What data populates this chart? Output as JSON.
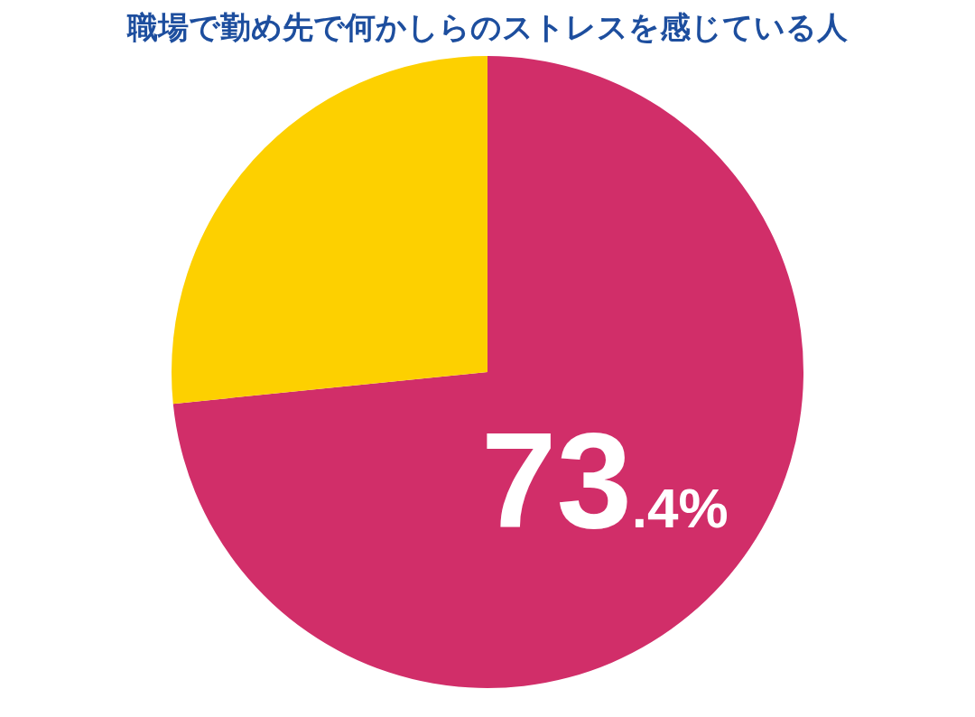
{
  "chart_data": {
    "type": "pie",
    "title": "職場で勤め先で何かしらのストレスを感じている人",
    "categories": [
      null,
      null
    ],
    "values": [
      73.4,
      26.6
    ],
    "colors": [
      "#d12e69",
      "#fdd000"
    ],
    "value_labels": [
      "73.4%",
      null
    ],
    "legend": false
  }
}
